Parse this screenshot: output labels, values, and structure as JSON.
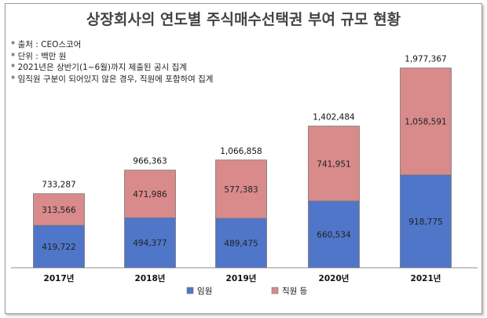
{
  "chart_data": {
    "type": "bar",
    "stacked": true,
    "title": "상장회사의 연도별 주식매수선택권 부여 규모 현황",
    "notes": [
      "* 출처 : CEO스코어",
      "* 단위 : 백만 원",
      "* 2021년은  상반기(1~6월)까지 제출된 공시 집계",
      "* 임직원 구분이 되어있지 않은 경우, 직원에 포함하여 집계"
    ],
    "categories": [
      "2017년",
      "2018년",
      "2019년",
      "2020년",
      "2021년"
    ],
    "series": [
      {
        "name": "임원",
        "values": [
          419722,
          494377,
          489475,
          660534,
          918775
        ],
        "labels": [
          "419,722",
          "494,377",
          "489,475",
          "660,534",
          "918,775"
        ],
        "color": "#4f76c8"
      },
      {
        "name": "직원 등",
        "values": [
          313566,
          471986,
          577383,
          741951,
          1058591
        ],
        "labels": [
          "313,566",
          "471,986",
          "577,383",
          "741,951",
          "1,058,591"
        ],
        "color": "#d98a8a"
      }
    ],
    "totals": [
      733287,
      966363,
      1066858,
      1402484,
      1977367
    ],
    "total_labels": [
      "733,287",
      "966,363",
      "1,066,858",
      "1,402,484",
      "1,977,367"
    ],
    "ylim": [
      0,
      2200000
    ],
    "grid": false,
    "legend_position": "bottom"
  }
}
